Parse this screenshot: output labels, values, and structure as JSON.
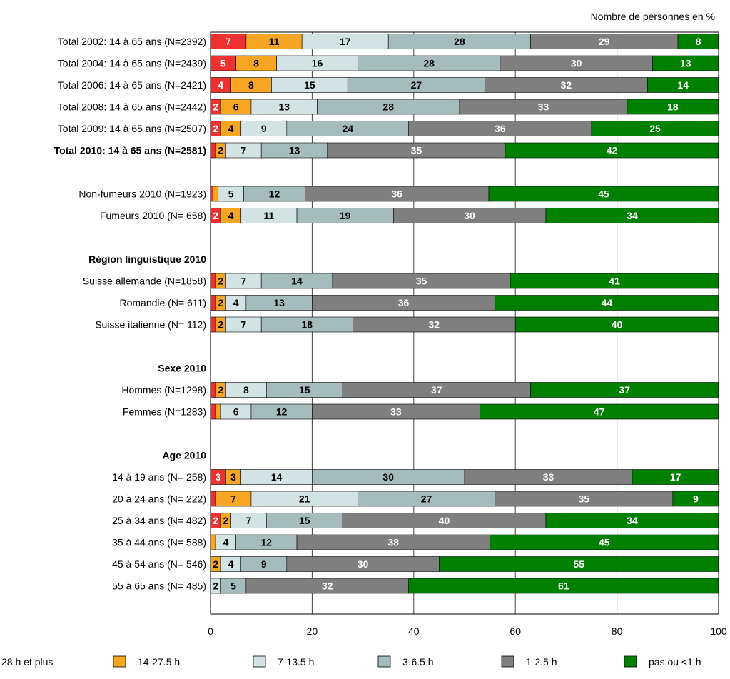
{
  "chart_data": {
    "type": "bar",
    "orientation": "horizontal",
    "stacked": true,
    "unit_note": "Nombre de personnes en %",
    "xlim": [
      0,
      100
    ],
    "x_ticks": [
      "0",
      "20",
      "40",
      "60",
      "80",
      "100"
    ],
    "grid": "vertical",
    "legend_position": "bottom",
    "series": [
      {
        "name": "28 h et plus",
        "color": "#ee3030"
      },
      {
        "name": "14-27.5 h",
        "color": "#f6a623"
      },
      {
        "name": "7-13.5 h",
        "color": "#d3e2e2"
      },
      {
        "name": "3-6.5 h",
        "color": "#a6bcbc"
      },
      {
        "name": "1-2.5 h",
        "color": "#7f7f7f"
      },
      {
        "name": "pas ou <1 h",
        "color": "#008000"
      }
    ],
    "rows": [
      {
        "label": "Total 2002: 14 à 65 ans (N=2392)",
        "values": [
          7,
          11,
          17,
          28,
          29,
          8
        ]
      },
      {
        "label": "Total 2004: 14 à 65 ans (N=2439)",
        "values": [
          5,
          8,
          16,
          28,
          30,
          13
        ]
      },
      {
        "label": "Total 2006: 14 à 65 ans (N=2421)",
        "values": [
          4,
          8,
          15,
          27,
          32,
          14
        ]
      },
      {
        "label": "Total 2008: 14 à 65 ans (N=2442)",
        "values": [
          2,
          6,
          13,
          28,
          33,
          18
        ]
      },
      {
        "label": "Total 2009: 14 à 65 ans (N=2507)",
        "values": [
          2,
          4,
          9,
          24,
          36,
          25
        ]
      },
      {
        "label": "Total 2010: 14 à 65 ans (N=2581)",
        "bold": true,
        "values": [
          1,
          2,
          7,
          13,
          35,
          42
        ],
        "labels": [
          "",
          "2",
          "7",
          "13",
          "35",
          "42"
        ]
      },
      {
        "spacer": true
      },
      {
        "label": "Non-fumeurs 2010 (N=1923)",
        "values": [
          0.5,
          1,
          5,
          12,
          36,
          45
        ],
        "labels": [
          "",
          "",
          "5",
          "12",
          "36",
          "45"
        ]
      },
      {
        "label": "Fumeurs 2010 (N=  658)",
        "values": [
          2,
          4,
          11,
          19,
          30,
          34
        ]
      },
      {
        "spacer": true
      },
      {
        "heading": "Région linguistique 2010"
      },
      {
        "label": "Suisse allemande (N=1858)",
        "values": [
          1,
          2,
          7,
          14,
          35,
          41
        ],
        "labels": [
          "",
          "2",
          "7",
          "14",
          "35",
          "41"
        ]
      },
      {
        "label": "Romandie (N=  611)",
        "values": [
          1,
          2,
          4,
          13,
          36,
          44
        ],
        "labels": [
          "",
          "2",
          "4",
          "13",
          "36",
          "44"
        ]
      },
      {
        "label": "Suisse italienne (N=  112)",
        "values": [
          1,
          2,
          7,
          18,
          32,
          40
        ],
        "labels": [
          "",
          "2",
          "7",
          "18",
          "32",
          "40"
        ]
      },
      {
        "spacer": true
      },
      {
        "heading": "Sexe 2010"
      },
      {
        "label": "Hommes (N=1298)",
        "values": [
          1,
          2,
          8,
          15,
          37,
          37
        ],
        "labels": [
          "",
          "2",
          "8",
          "15",
          "37",
          "37"
        ]
      },
      {
        "label": "Femmes (N=1283)",
        "values": [
          1,
          1,
          6,
          12,
          33,
          47
        ],
        "labels": [
          "",
          "",
          "6",
          "12",
          "33",
          "47"
        ]
      },
      {
        "spacer": true
      },
      {
        "heading": "Age 2010"
      },
      {
        "label": "14 à 19 ans (N=  258)",
        "values": [
          3,
          3,
          14,
          30,
          33,
          17
        ]
      },
      {
        "label": "20 à 24 ans (N=  222)",
        "values": [
          1,
          7,
          21,
          27,
          35,
          9
        ],
        "labels": [
          "",
          "7",
          "21",
          "27",
          "35",
          "9"
        ]
      },
      {
        "label": "25 à 34 ans (N=  482)",
        "values": [
          2,
          2,
          7,
          15,
          40,
          34
        ]
      },
      {
        "label": "35 à 44 ans (N=  588)",
        "values": [
          0,
          1,
          4,
          12,
          38,
          45
        ],
        "labels": [
          "",
          "",
          "4",
          "12",
          "38",
          "45"
        ]
      },
      {
        "label": "45 à 54 ans (N=  546)",
        "values": [
          0,
          2,
          4,
          9,
          30,
          55
        ],
        "labels": [
          "",
          "2",
          "4",
          "9",
          "30",
          "55"
        ]
      },
      {
        "label": "55 à 65 ans (N=  485)",
        "values": [
          0,
          0,
          2,
          5,
          32,
          61
        ],
        "labels": [
          "",
          "",
          "2",
          "5",
          "32",
          "61"
        ]
      }
    ]
  }
}
